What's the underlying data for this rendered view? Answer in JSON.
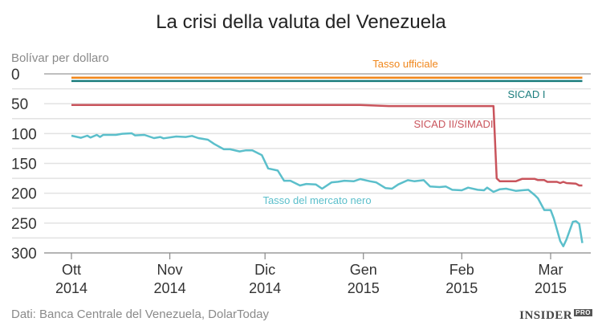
{
  "chart_data": {
    "type": "line",
    "title": "La crisi della valuta del Venezuela",
    "ylabel": "Bolívar per dollaro",
    "ylim": [
      0,
      300
    ],
    "y_inverted": true,
    "yticks": [
      0,
      50,
      100,
      150,
      200,
      250,
      300
    ],
    "grid_step": 25,
    "grid": true,
    "xticks": [
      {
        "date": "2014-10-01",
        "month": "Ott",
        "year": "2014"
      },
      {
        "date": "2014-11-01",
        "month": "Nov",
        "year": "2014"
      },
      {
        "date": "2014-12-01",
        "month": "Dic",
        "year": "2014"
      },
      {
        "date": "2015-01-01",
        "month": "Gen",
        "year": "2015"
      },
      {
        "date": "2015-02-01",
        "month": "Feb",
        "year": "2015"
      },
      {
        "date": "2015-03-01",
        "month": "Mar",
        "year": "2015"
      }
    ],
    "source": "Dati: Banca Centrale del Venezuela, DolarToday",
    "series": [
      {
        "name": "Tasso ufficiale",
        "color": "#f0861a",
        "points": [
          [
            "2014-10-01",
            6.3
          ],
          [
            "2015-03-11",
            6.3
          ]
        ]
      },
      {
        "name": "SICAD I",
        "color": "#1a7d7d",
        "points": [
          [
            "2014-10-01",
            12
          ],
          [
            "2015-03-11",
            12
          ]
        ]
      },
      {
        "name": "SICAD II/SIMADI",
        "color": "#c9545c",
        "points": [
          [
            "2014-10-01",
            52
          ],
          [
            "2014-12-31",
            52
          ],
          [
            "2015-01-09",
            54
          ],
          [
            "2015-02-11",
            54
          ],
          [
            "2015-02-12",
            175
          ],
          [
            "2015-02-13",
            180
          ],
          [
            "2015-02-18",
            180
          ],
          [
            "2015-02-20",
            176
          ],
          [
            "2015-02-24",
            176
          ],
          [
            "2015-02-25",
            178
          ],
          [
            "2015-02-27",
            178
          ],
          [
            "2015-02-28",
            181
          ],
          [
            "2015-03-03",
            181
          ],
          [
            "2015-03-04",
            183
          ],
          [
            "2015-03-05",
            181
          ],
          [
            "2015-03-06",
            183
          ],
          [
            "2015-03-09",
            184
          ],
          [
            "2015-03-10",
            187
          ],
          [
            "2015-03-11",
            187
          ]
        ]
      },
      {
        "name": "Tasso del mercato nero",
        "color": "#5bbfcb",
        "points": [
          [
            "2014-10-01",
            103.6
          ],
          [
            "2014-10-04",
            107.1
          ],
          [
            "2014-10-06",
            103.6
          ],
          [
            "2014-10-07",
            106.7
          ],
          [
            "2014-10-09",
            102.2
          ],
          [
            "2014-10-10",
            105.8
          ],
          [
            "2014-10-11",
            102.2
          ],
          [
            "2014-10-15",
            102.2
          ],
          [
            "2014-10-17",
            100.4
          ],
          [
            "2014-10-20",
            99.6
          ],
          [
            "2014-10-21",
            103.1
          ],
          [
            "2014-10-24",
            102.2
          ],
          [
            "2014-10-27",
            107.6
          ],
          [
            "2014-10-29",
            105.8
          ],
          [
            "2014-10-30",
            108
          ],
          [
            "2014-11-03",
            104.9
          ],
          [
            "2014-11-06",
            105.8
          ],
          [
            "2014-11-08",
            104
          ],
          [
            "2014-11-10",
            107.6
          ],
          [
            "2014-11-13",
            110.3
          ],
          [
            "2014-11-15",
            117.4
          ],
          [
            "2014-11-18",
            126.3
          ],
          [
            "2014-11-20",
            126.3
          ],
          [
            "2014-11-23",
            129.9
          ],
          [
            "2014-11-25",
            128.1
          ],
          [
            "2014-11-27",
            128.1
          ],
          [
            "2014-11-29",
            133.5
          ],
          [
            "2014-11-30",
            136.2
          ],
          [
            "2014-12-02",
            158.5
          ],
          [
            "2014-12-05",
            162
          ],
          [
            "2014-12-07",
            179
          ],
          [
            "2014-12-09",
            179
          ],
          [
            "2014-12-12",
            187
          ],
          [
            "2014-12-14",
            184.4
          ],
          [
            "2014-12-17",
            185.3
          ],
          [
            "2014-12-19",
            192.4
          ],
          [
            "2014-12-22",
            181.7
          ],
          [
            "2014-12-24",
            180.8
          ],
          [
            "2014-12-26",
            179
          ],
          [
            "2014-12-29",
            179.9
          ],
          [
            "2014-12-31",
            176.3
          ],
          [
            "2015-01-03",
            179.9
          ],
          [
            "2015-01-05",
            181.7
          ],
          [
            "2015-01-08",
            191.5
          ],
          [
            "2015-01-10",
            192.4
          ],
          [
            "2015-01-12",
            185.3
          ],
          [
            "2015-01-15",
            178.1
          ],
          [
            "2015-01-17",
            179.9
          ],
          [
            "2015-01-20",
            178.1
          ],
          [
            "2015-01-22",
            188.8
          ],
          [
            "2015-01-25",
            189.7
          ],
          [
            "2015-01-27",
            188.8
          ],
          [
            "2015-01-29",
            194.2
          ],
          [
            "2015-02-01",
            195.1
          ],
          [
            "2015-02-03",
            190.6
          ],
          [
            "2015-02-06",
            194.2
          ],
          [
            "2015-02-08",
            195.1
          ],
          [
            "2015-02-09",
            190.6
          ],
          [
            "2015-02-11",
            197.8
          ],
          [
            "2015-02-13",
            193.3
          ],
          [
            "2015-02-15",
            192.4
          ],
          [
            "2015-02-18",
            196
          ],
          [
            "2015-02-20",
            195.1
          ],
          [
            "2015-02-22",
            194.2
          ],
          [
            "2015-02-24",
            203.1
          ],
          [
            "2015-02-25",
            208.5
          ],
          [
            "2015-02-27",
            228.1
          ],
          [
            "2015-03-01",
            228.1
          ],
          [
            "2015-03-02",
            242.4
          ],
          [
            "2015-03-04",
            279.9
          ],
          [
            "2015-03-05",
            288.8
          ],
          [
            "2015-03-06",
            277.2
          ],
          [
            "2015-03-08",
            247.8
          ],
          [
            "2015-03-09",
            246.9
          ],
          [
            "2015-03-10",
            251.3
          ],
          [
            "2015-03-11",
            283.5
          ]
        ]
      }
    ]
  },
  "logo": {
    "text": "INSIDER",
    "badge": "PRO"
  }
}
